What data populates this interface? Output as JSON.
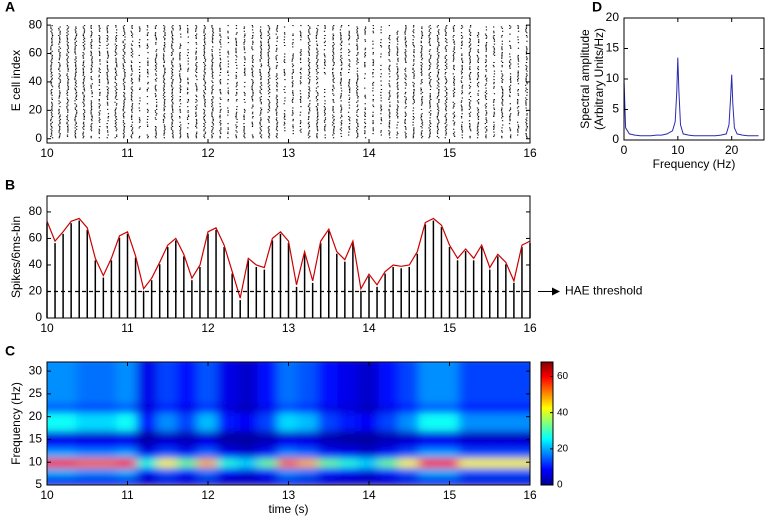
{
  "chart_data": [
    {
      "type": "raster",
      "label": "A",
      "ylabel": "E cell index",
      "x": [
        10.05,
        10.15,
        10.25,
        10.35,
        10.45,
        10.55,
        10.65,
        10.75,
        10.85,
        10.95,
        11.05,
        11.15,
        11.25,
        11.35,
        11.45,
        11.55,
        11.65,
        11.75,
        11.85,
        11.95,
        12.05,
        12.15,
        12.25,
        12.35,
        12.45,
        12.55,
        12.65,
        12.75,
        12.85,
        12.95,
        13.05,
        13.15,
        13.25,
        13.35,
        13.45,
        13.55,
        13.65,
        13.75,
        13.85,
        13.95,
        14.05,
        14.15,
        14.25,
        14.35,
        14.45,
        14.55,
        14.65,
        14.75,
        14.85,
        14.95,
        15.05,
        15.15,
        15.25,
        15.35,
        15.45,
        15.55,
        15.65,
        15.75,
        15.85,
        15.95
      ],
      "values": [
        78,
        70,
        74,
        78,
        72,
        60,
        50,
        60,
        74,
        76,
        62,
        35,
        40,
        58,
        70,
        72,
        55,
        40,
        60,
        76,
        72,
        50,
        30,
        55,
        50,
        52,
        68,
        72,
        60,
        35,
        50,
        40,
        66,
        70,
        45,
        72,
        60,
        55,
        65,
        40,
        38,
        35,
        50,
        55,
        55,
        58,
        65,
        76,
        78,
        72,
        60,
        55,
        60,
        55,
        58,
        45,
        55,
        50,
        45,
        65
      ],
      "color": "#000000",
      "xlim": [
        10,
        16
      ],
      "xticks": [
        10,
        11,
        12,
        13,
        14,
        15,
        16
      ],
      "ylim": [
        -3,
        85
      ],
      "yticks": [
        0,
        20,
        40,
        60,
        80
      ]
    },
    {
      "type": "stem-line",
      "label": "B",
      "ylabel": "Spikes/6ms-bin",
      "x": [
        10,
        10.1,
        10.2,
        10.3,
        10.4,
        10.5,
        10.6,
        10.7,
        10.8,
        10.9,
        11,
        11.1,
        11.2,
        11.3,
        11.4,
        11.5,
        11.6,
        11.7,
        11.8,
        11.9,
        12,
        12.1,
        12.2,
        12.3,
        12.4,
        12.5,
        12.6,
        12.7,
        12.8,
        12.9,
        13,
        13.1,
        13.2,
        13.3,
        13.4,
        13.5,
        13.6,
        13.7,
        13.8,
        13.9,
        14,
        14.1,
        14.2,
        14.3,
        14.4,
        14.5,
        14.6,
        14.7,
        14.8,
        14.9,
        15,
        15.1,
        15.2,
        15.3,
        15.4,
        15.5,
        15.6,
        15.7,
        15.8,
        15.9,
        16
      ],
      "values": [
        73,
        58,
        65,
        73,
        75,
        68,
        45,
        32,
        45,
        62,
        65,
        47,
        22,
        30,
        42,
        55,
        60,
        48,
        30,
        40,
        65,
        68,
        55,
        35,
        15,
        45,
        40,
        38,
        60,
        65,
        58,
        25,
        50,
        28,
        58,
        67,
        50,
        44,
        58,
        22,
        33,
        25,
        35,
        40,
        39,
        40,
        50,
        72,
        75,
        70,
        55,
        45,
        52,
        45,
        55,
        38,
        48,
        42,
        28,
        55,
        58
      ],
      "color": "#cc0000",
      "stem_color": "#000000",
      "threshold": 20,
      "annotation": "HAE  threshold",
      "xlim": [
        10,
        16
      ],
      "xticks": [
        10,
        11,
        12,
        13,
        14,
        15,
        16
      ],
      "ylim": [
        0,
        92
      ],
      "yticks": [
        0,
        20,
        40,
        60,
        80
      ]
    },
    {
      "type": "heatmap",
      "label": "C",
      "ylabel": "Frequency (Hz)",
      "xlabel": "time (s)",
      "x": [
        10,
        10.25,
        10.5,
        10.75,
        11,
        11.25,
        11.5,
        11.75,
        12,
        12.25,
        12.5,
        12.75,
        13,
        13.25,
        13.5,
        13.75,
        14,
        14.25,
        14.5,
        14.75,
        15,
        15.25,
        15.5,
        15.75,
        16
      ],
      "y": [
        6,
        8,
        10,
        12,
        14,
        16,
        18,
        20,
        22,
        24,
        26,
        28,
        30,
        32
      ],
      "values": [
        [
          7,
          7,
          7,
          7,
          7,
          4,
          6,
          5,
          6,
          4,
          4,
          5,
          7,
          6,
          5,
          4,
          4,
          5,
          6,
          7,
          7,
          6,
          6,
          6,
          6
        ],
        [
          20,
          20,
          18,
          18,
          20,
          8,
          14,
          10,
          16,
          8,
          6,
          10,
          18,
          16,
          10,
          8,
          6,
          10,
          14,
          20,
          20,
          14,
          14,
          14,
          14
        ],
        [
          58,
          58,
          53,
          53,
          58,
          28,
          43,
          33,
          48,
          28,
          23,
          33,
          53,
          48,
          33,
          28,
          23,
          33,
          43,
          58,
          58,
          43,
          43,
          43,
          43
        ],
        [
          20,
          20,
          18,
          18,
          20,
          8,
          14,
          10,
          16,
          8,
          6,
          10,
          18,
          16,
          10,
          8,
          6,
          10,
          14,
          20,
          20,
          14,
          14,
          14,
          14
        ],
        [
          10,
          10,
          9,
          9,
          10,
          4,
          7,
          5,
          8,
          4,
          3,
          5,
          9,
          8,
          5,
          4,
          3,
          5,
          7,
          10,
          10,
          7,
          7,
          7,
          7
        ],
        [
          6,
          6,
          5,
          5,
          6,
          2,
          4,
          3,
          5,
          2,
          2,
          3,
          5,
          5,
          3,
          2,
          2,
          3,
          4,
          6,
          6,
          4,
          4,
          4,
          4
        ],
        [
          26,
          26,
          23,
          23,
          26,
          10,
          18,
          13,
          21,
          10,
          8,
          13,
          23,
          21,
          13,
          10,
          8,
          13,
          18,
          26,
          26,
          18,
          18,
          18,
          18
        ],
        [
          26,
          26,
          23,
          23,
          26,
          10,
          18,
          13,
          21,
          10,
          8,
          13,
          23,
          21,
          13,
          10,
          8,
          13,
          18,
          26,
          26,
          18,
          18,
          18,
          18
        ],
        [
          14,
          14,
          13,
          13,
          14,
          6,
          10,
          7,
          11,
          6,
          4,
          7,
          13,
          11,
          7,
          6,
          4,
          7,
          10,
          14,
          14,
          10,
          10,
          10,
          10
        ],
        [
          18,
          18,
          16,
          16,
          18,
          7,
          13,
          9,
          14,
          7,
          5,
          9,
          16,
          14,
          9,
          7,
          5,
          9,
          13,
          18,
          18,
          13,
          13,
          13,
          13
        ],
        [
          18,
          18,
          16,
          16,
          18,
          7,
          13,
          9,
          14,
          7,
          5,
          9,
          16,
          14,
          9,
          7,
          5,
          9,
          13,
          18,
          18,
          13,
          13,
          13,
          13
        ],
        [
          18,
          18,
          16,
          16,
          18,
          7,
          13,
          9,
          14,
          7,
          5,
          9,
          16,
          14,
          9,
          7,
          5,
          9,
          13,
          18,
          18,
          13,
          13,
          13,
          13
        ],
        [
          18,
          18,
          16,
          16,
          18,
          7,
          13,
          9,
          14,
          7,
          5,
          9,
          16,
          14,
          9,
          7,
          5,
          9,
          13,
          18,
          18,
          13,
          13,
          13,
          13
        ],
        [
          18,
          18,
          16,
          16,
          18,
          7,
          13,
          9,
          14,
          7,
          5,
          9,
          16,
          14,
          9,
          7,
          5,
          9,
          13,
          18,
          18,
          13,
          13,
          13,
          13
        ]
      ],
      "xlim": [
        10,
        16
      ],
      "xticks": [
        10,
        11,
        12,
        13,
        14,
        15,
        16
      ],
      "ylim": [
        5,
        32
      ],
      "yticks": [
        5,
        10,
        15,
        20,
        25,
        30
      ],
      "clim": [
        0,
        68
      ],
      "cticks": [
        0,
        20,
        40,
        60
      ]
    },
    {
      "type": "line",
      "label": "D",
      "ylabel": [
        "Spectral amplitude",
        "(Arbitrary Units/Hz)"
      ],
      "xlabel": "Frequency (Hz)",
      "x": [
        0,
        0.3,
        1,
        2,
        3,
        4,
        5,
        6,
        7,
        8,
        9,
        9.5,
        9.8,
        10,
        10.2,
        10.5,
        11,
        12,
        13,
        14,
        15,
        16,
        17,
        18,
        19,
        19.5,
        19.8,
        20,
        20.2,
        20.5,
        21,
        22,
        23,
        24,
        25
      ],
      "values": [
        10,
        2,
        1,
        0.8,
        0.7,
        0.7,
        0.7,
        0.8,
        0.8,
        1,
        1.5,
        3,
        8,
        13.5,
        8,
        2.5,
        1,
        0.8,
        0.7,
        0.7,
        0.7,
        0.7,
        0.7,
        0.8,
        1,
        2.5,
        7,
        10.7,
        6,
        2,
        1,
        0.8,
        0.7,
        0.7,
        0.7
      ],
      "color": "#2b2bb0",
      "xlim": [
        0,
        26
      ],
      "xticks": [
        0,
        10,
        20
      ],
      "ylim": [
        0,
        20
      ],
      "yticks": [
        0,
        5,
        10,
        15,
        20
      ]
    }
  ]
}
